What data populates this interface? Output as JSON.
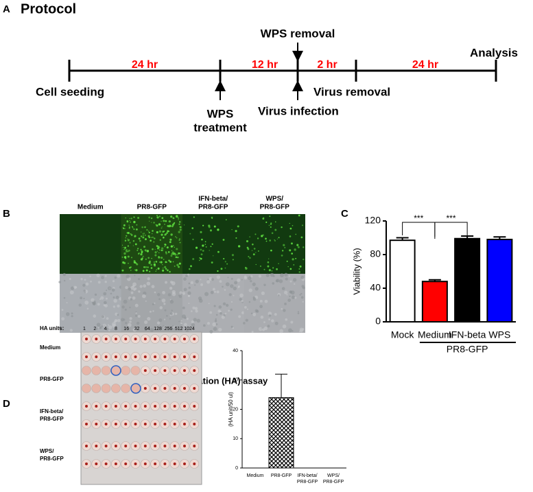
{
  "panel_labels": [
    "A",
    "B",
    "C",
    "D"
  ],
  "protocol": {
    "title": "Protocol",
    "durations": [
      "24 hr",
      "12 hr",
      "2 hr",
      "24 hr"
    ],
    "events": [
      "Cell seeding",
      "WPS",
      "treatment",
      "WPS removal",
      "Virus infection",
      "Virus removal",
      "Analysis"
    ]
  },
  "panel_b": {
    "columns": [
      [
        "Medium"
      ],
      [
        "PR8-GFP"
      ],
      [
        "IFN-beta/",
        "PR8-GFP"
      ],
      [
        "WPS/",
        "PR8-GFP"
      ]
    ]
  },
  "panel_d": {
    "units_label": "HA units:",
    "units": [
      1,
      2,
      4,
      8,
      16,
      32,
      64,
      128,
      256,
      512,
      1024
    ],
    "rows": [
      [
        "Medium"
      ],
      [
        "PR8-GFP"
      ],
      [
        "IFN-beta/",
        "PR8-GFP"
      ],
      [
        "WPS/",
        "PR8-GFP"
      ]
    ]
  },
  "chart_data": [
    {
      "type": "bar",
      "categories": [
        "Mock",
        "Medium",
        "IFN-beta",
        "WPS"
      ],
      "values": [
        97,
        48,
        99,
        98
      ],
      "errors": [
        3,
        2,
        3,
        3
      ],
      "colors": [
        "#ffffff",
        "#ff0000",
        "#000000",
        "#0000ff"
      ],
      "ylabel": "Viability (%)",
      "ylim": [
        0,
        120
      ],
      "yticks": [
        0,
        40,
        80,
        120
      ],
      "annotations": [
        "***",
        "***"
      ],
      "group_label": "PR8-GFP"
    },
    {
      "type": "bar",
      "title": "Hemagglutination (HA) assay",
      "categories": [
        [
          "Medium"
        ],
        [
          "PR8-GFP"
        ],
        [
          "IFN-beta/",
          "PR8-GFP"
        ],
        [
          "WPS/",
          "PR8-GFP"
        ]
      ],
      "values": [
        0,
        24,
        0,
        0
      ],
      "errors": [
        0,
        8,
        0,
        0
      ],
      "fill": "hatch",
      "ylabel": "(HA unit/50 ul)",
      "ylim": [
        0,
        40
      ],
      "yticks": [
        0,
        10,
        20,
        30,
        40
      ]
    }
  ]
}
